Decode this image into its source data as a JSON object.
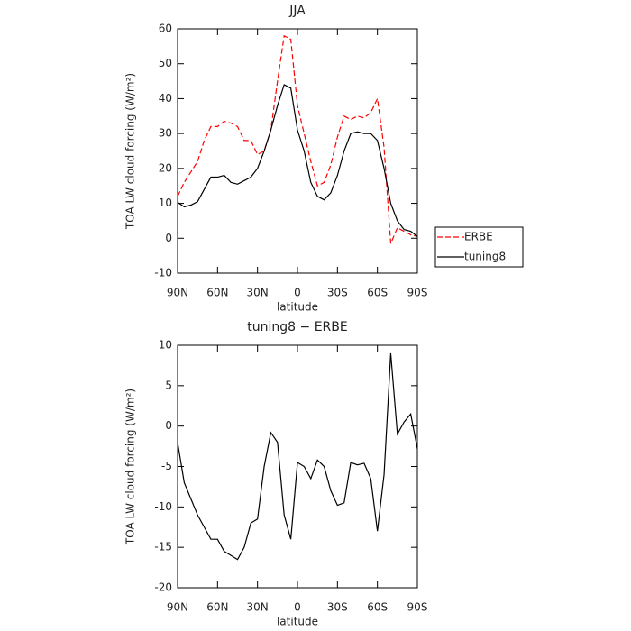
{
  "chart_data": [
    {
      "type": "line",
      "title": "JJA",
      "xlabel": "latitude",
      "ylabel": "TOA LW cloud forcing (W/m²)",
      "x": [
        90,
        85,
        80,
        75,
        70,
        65,
        60,
        55,
        50,
        45,
        40,
        35,
        30,
        25,
        20,
        15,
        10,
        5,
        0,
        -5,
        -10,
        -15,
        -20,
        -25,
        -30,
        -35,
        -40,
        -45,
        -50,
        -55,
        -60,
        -65,
        -70,
        -75,
        -80,
        -85,
        -90
      ],
      "series": [
        {
          "name": "ERBE",
          "color": "#ff0000",
          "style": "dashed",
          "values": [
            12,
            16,
            19,
            22,
            28,
            32,
            32,
            33.5,
            33,
            32,
            28,
            28,
            24,
            25,
            31,
            45,
            58,
            57,
            38,
            30,
            22,
            15,
            16,
            21,
            29,
            35,
            34,
            35,
            34.5,
            36,
            40,
            26,
            -1.5,
            3,
            2,
            1,
            0.5
          ]
        },
        {
          "name": "tuning8",
          "color": "#000000",
          "style": "solid",
          "values": [
            10.3,
            9,
            9.5,
            10.5,
            14,
            17.5,
            17.5,
            18,
            16,
            15.5,
            16.5,
            17.5,
            20,
            25,
            31,
            38,
            44,
            43,
            31,
            25,
            16,
            12,
            11,
            13,
            18,
            25,
            30,
            30.5,
            30,
            30,
            28,
            20,
            10,
            5,
            2.5,
            2,
            0.5
          ]
        }
      ],
      "xlim": [
        90,
        -90
      ],
      "xticks": [
        {
          "value": 90,
          "label": "90N"
        },
        {
          "value": 60,
          "label": "60N"
        },
        {
          "value": 30,
          "label": "30N"
        },
        0,
        {
          "value": -30,
          "label": "30S"
        },
        {
          "value": -60,
          "label": "60S"
        },
        {
          "value": -90,
          "label": "90S"
        }
      ],
      "ylim": [
        -10,
        60
      ],
      "yticks": [
        -10,
        0,
        10,
        20,
        30,
        40,
        50,
        60
      ],
      "legend": "right"
    },
    {
      "type": "line",
      "title": "tuning8 − ERBE",
      "xlabel": "latitude",
      "ylabel": "TOA LW cloud forcing (W/m²)",
      "x": [
        90,
        85,
        80,
        75,
        70,
        65,
        60,
        55,
        50,
        45,
        40,
        35,
        30,
        25,
        20,
        15,
        10,
        5,
        0,
        -5,
        -10,
        -15,
        -20,
        -25,
        -30,
        -35,
        -40,
        -45,
        -50,
        -55,
        -60,
        -65,
        -70,
        -75,
        -80,
        -85,
        -90
      ],
      "color": "#000000",
      "values": [
        -2,
        -7,
        -9,
        -11,
        -12.5,
        -14,
        -14,
        -15.5,
        -16,
        -16.5,
        -15,
        -12,
        -11.5,
        -5,
        -0.8,
        -2,
        -11,
        -14,
        -4.5,
        -5,
        -6.5,
        -4.2,
        -5,
        -8,
        -9.8,
        -9.5,
        -4.5,
        -4.8,
        -4.6,
        -6.5,
        -13,
        -6,
        9,
        -1,
        0.5,
        1.5,
        -2.8
      ],
      "xlim": [
        90,
        -90
      ],
      "xticks": [
        {
          "value": 90,
          "label": "90N"
        },
        {
          "value": 60,
          "label": "60N"
        },
        {
          "value": 30,
          "label": "30N"
        },
        0,
        {
          "value": -30,
          "label": "30S"
        },
        {
          "value": -60,
          "label": "60S"
        },
        {
          "value": -90,
          "label": "90S"
        }
      ],
      "ylim": [
        -20,
        10
      ],
      "yticks": [
        -20,
        -15,
        -10,
        -5,
        0,
        5,
        10
      ]
    }
  ]
}
